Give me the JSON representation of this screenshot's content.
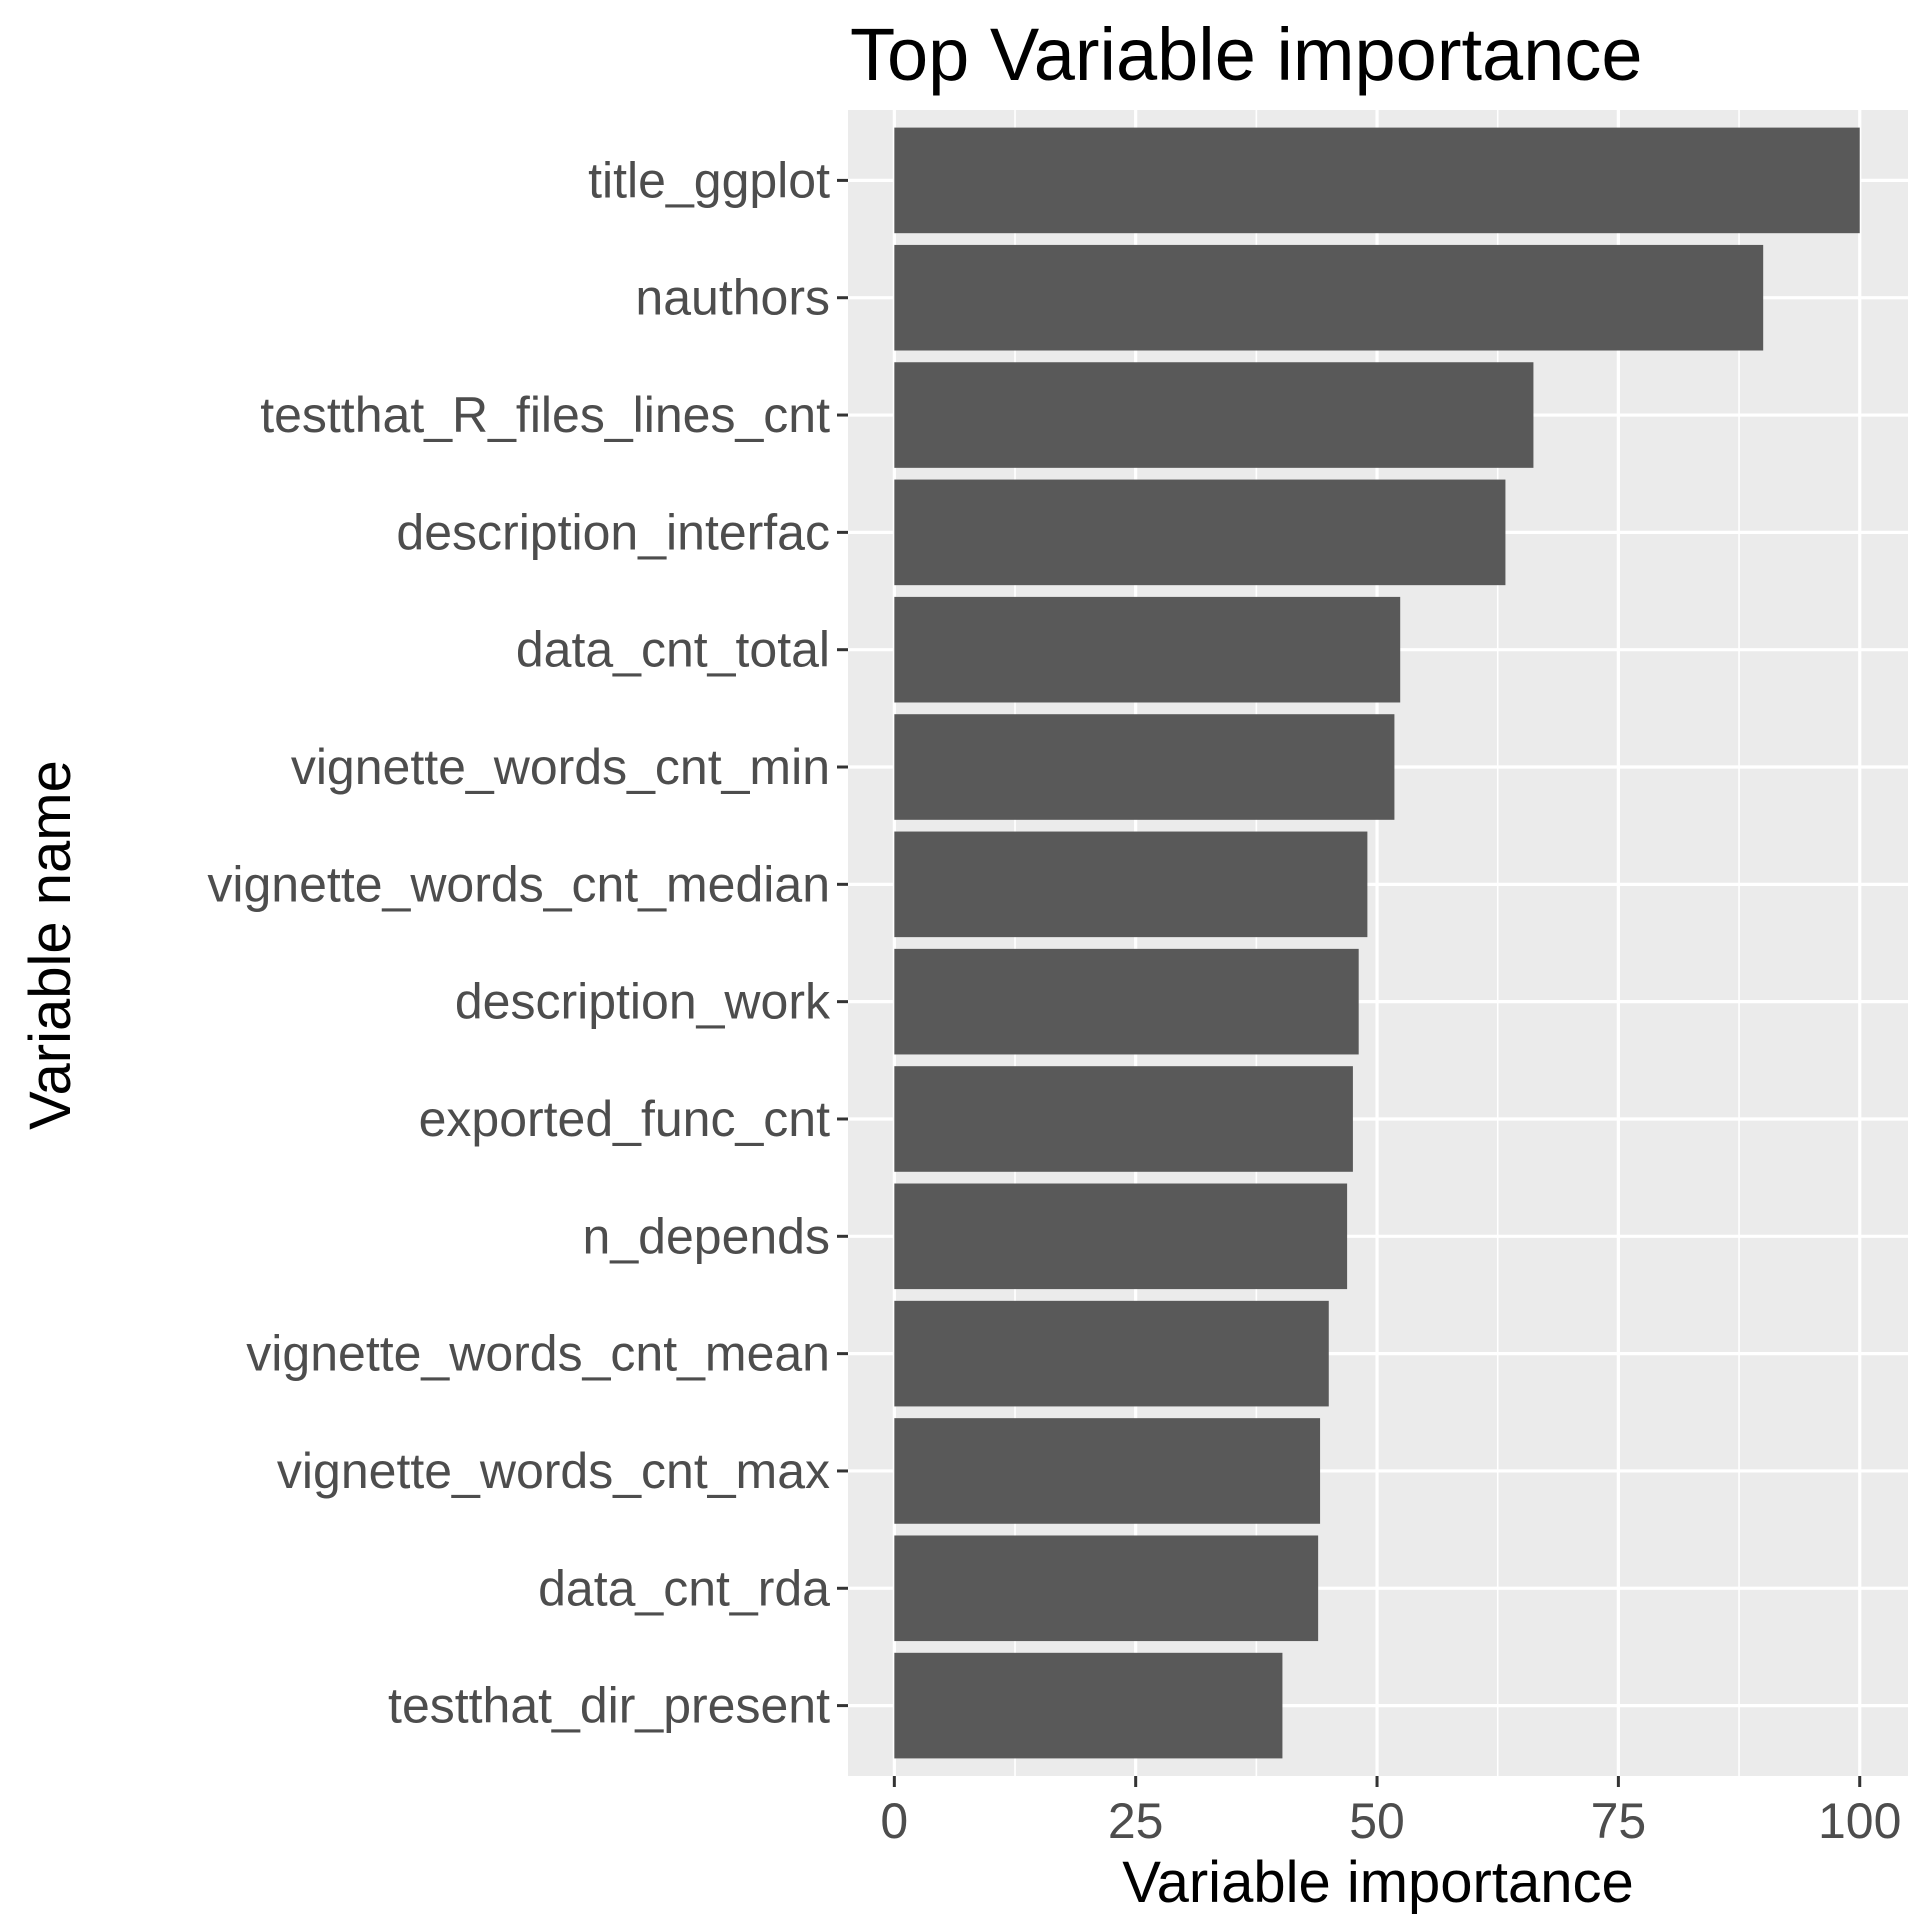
{
  "chart_data": {
    "type": "bar",
    "orientation": "horizontal",
    "title": "Top Variable importance",
    "xlabel": "Variable importance",
    "ylabel": "Variable name",
    "xlim": [
      -4.8,
      105
    ],
    "xticks": [
      0,
      25,
      50,
      75,
      100
    ],
    "xtick_labels": [
      "0",
      "25",
      "50",
      "75",
      "100"
    ],
    "grid": true,
    "legend": "none",
    "bar_color": "#595959",
    "panel_color": "#ebebeb",
    "categories": [
      "title_ggplot",
      "nauthors",
      "testthat_R_files_lines_cnt",
      "description_interfac",
      "data_cnt_total",
      "vignette_words_cnt_min",
      "vignette_words_cnt_median",
      "description_work",
      "exported_func_cnt",
      "n_depends",
      "vignette_words_cnt_mean",
      "vignette_words_cnt_max",
      "data_cnt_rda",
      "testthat_dir_present"
    ],
    "values": [
      100,
      90,
      66.2,
      63.3,
      52.4,
      51.8,
      49.0,
      48.1,
      47.5,
      46.9,
      45.0,
      44.1,
      43.9,
      40.2
    ]
  }
}
